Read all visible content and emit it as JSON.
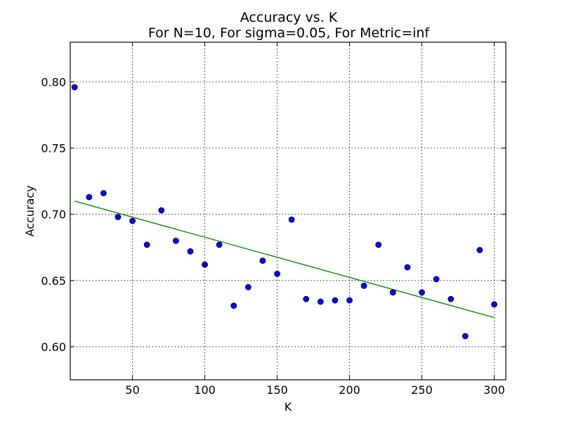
{
  "chart_data": {
    "type": "scatter",
    "title": "Accuracy vs. K",
    "subtitle": "For N=10, For sigma=0.05, For Metric=inf",
    "xlabel": "K",
    "ylabel": "Accuracy",
    "xlim": [
      7,
      308
    ],
    "ylim": [
      0.575,
      0.83
    ],
    "xticks": [
      50,
      100,
      150,
      200,
      250,
      300
    ],
    "yticks": [
      0.6,
      0.65,
      0.7,
      0.75,
      0.8
    ],
    "xtick_labels": [
      "50",
      "100",
      "150",
      "200",
      "250",
      "300"
    ],
    "ytick_labels": [
      "0.60",
      "0.65",
      "0.70",
      "0.75",
      "0.80"
    ],
    "grid": true,
    "points": [
      {
        "x": 10,
        "y": 0.796
      },
      {
        "x": 20,
        "y": 0.713
      },
      {
        "x": 30,
        "y": 0.716
      },
      {
        "x": 40,
        "y": 0.698
      },
      {
        "x": 50,
        "y": 0.695
      },
      {
        "x": 60,
        "y": 0.677
      },
      {
        "x": 70,
        "y": 0.703
      },
      {
        "x": 80,
        "y": 0.68
      },
      {
        "x": 90,
        "y": 0.672
      },
      {
        "x": 100,
        "y": 0.662
      },
      {
        "x": 110,
        "y": 0.677
      },
      {
        "x": 120,
        "y": 0.631
      },
      {
        "x": 130,
        "y": 0.645
      },
      {
        "x": 140,
        "y": 0.665
      },
      {
        "x": 150,
        "y": 0.655
      },
      {
        "x": 160,
        "y": 0.696
      },
      {
        "x": 170,
        "y": 0.636
      },
      {
        "x": 180,
        "y": 0.634
      },
      {
        "x": 190,
        "y": 0.635
      },
      {
        "x": 200,
        "y": 0.635
      },
      {
        "x": 210,
        "y": 0.646
      },
      {
        "x": 220,
        "y": 0.677
      },
      {
        "x": 230,
        "y": 0.641
      },
      {
        "x": 240,
        "y": 0.66
      },
      {
        "x": 250,
        "y": 0.641
      },
      {
        "x": 260,
        "y": 0.651
      },
      {
        "x": 270,
        "y": 0.636
      },
      {
        "x": 280,
        "y": 0.608
      },
      {
        "x": 290,
        "y": 0.673
      },
      {
        "x": 300,
        "y": 0.632
      }
    ],
    "trend_line": {
      "x": [
        10,
        300
      ],
      "y": [
        0.71,
        0.622
      ]
    },
    "colors": {
      "points": "#0000ff",
      "trend_line": "#008000"
    }
  }
}
